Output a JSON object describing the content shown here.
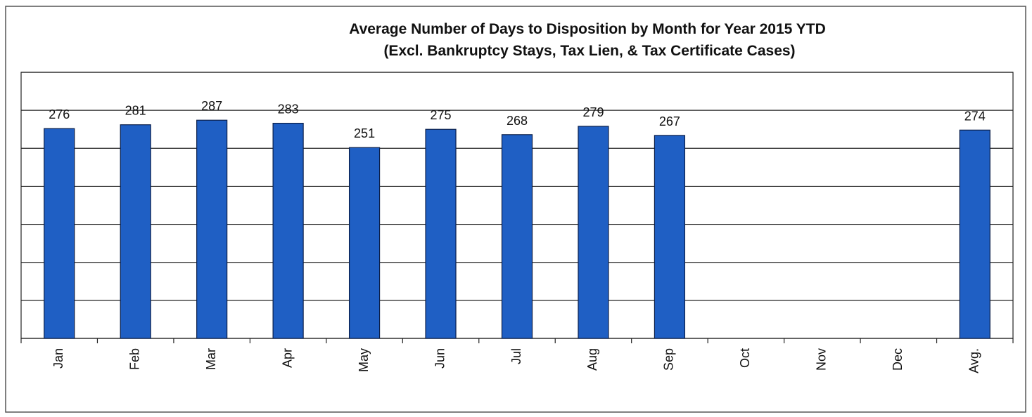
{
  "chart_data": {
    "type": "bar",
    "title": "Average Number of Days to Disposition by Month for Year 2015 YTD",
    "subtitle": "(Excl. Bankruptcy Stays, Tax Lien, & Tax Certificate Cases)",
    "categories": [
      "Jan",
      "Feb",
      "Mar",
      "Apr",
      "May",
      "Jun",
      "Jul",
      "Aug",
      "Sep",
      "Oct",
      "Nov",
      "Dec",
      "Avg."
    ],
    "values": [
      276,
      281,
      287,
      283,
      251,
      275,
      268,
      279,
      267,
      null,
      null,
      null,
      274
    ],
    "color": "#1f5fc4",
    "ylim": [
      0,
      350
    ],
    "yticks": [
      0,
      50,
      100,
      150,
      200,
      250,
      300,
      350
    ],
    "grid": true
  }
}
